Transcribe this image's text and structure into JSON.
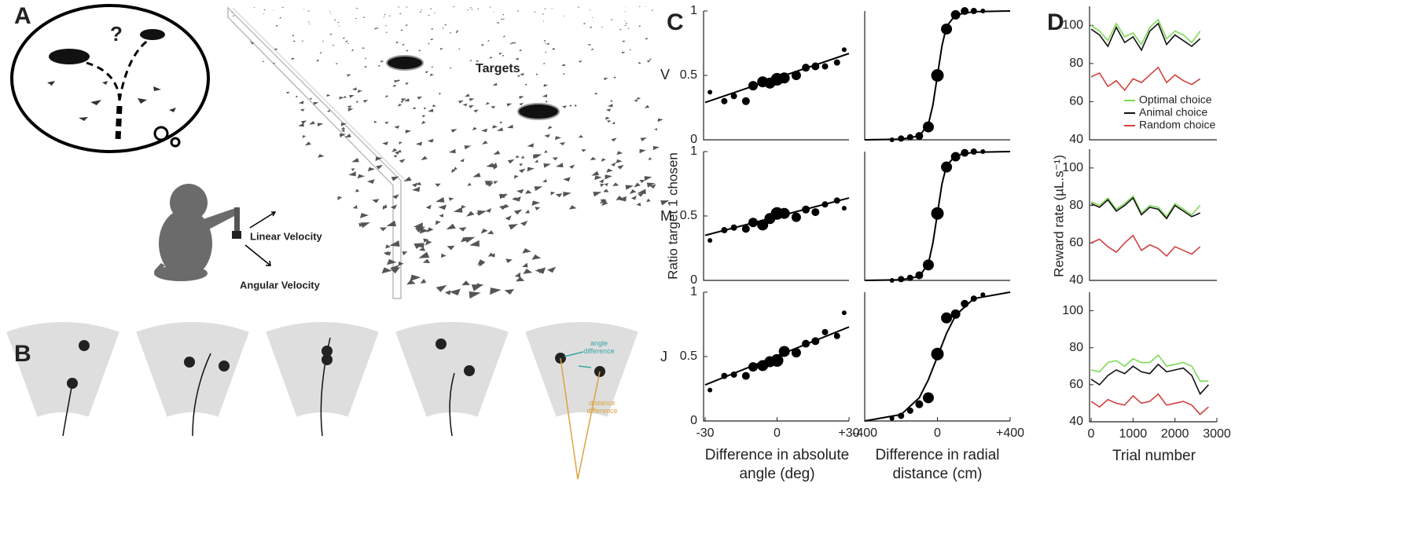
{
  "figure": {
    "panels": [
      "A",
      "B",
      "C",
      "D"
    ],
    "rows": [
      "V",
      "M",
      "J"
    ],
    "question": "?",
    "targets": "Targets",
    "linear_velocity": "Linear Velocity",
    "angular_velocity": "Angular Velocity",
    "angle_difference": "angle difference",
    "distance_difference": "distance difference"
  },
  "chart_data": [
    {
      "type": "scatter",
      "color": "#000",
      "xlim": [
        -30,
        30
      ],
      "ylim": [
        0,
        1
      ],
      "yticks": [
        0,
        0.5,
        1
      ],
      "x": [
        -28,
        -22,
        -18,
        -13,
        -10,
        -6,
        -3,
        0,
        3,
        8,
        12,
        16,
        20,
        25,
        28
      ],
      "values": [
        0.37,
        0.3,
        0.34,
        0.3,
        0.42,
        0.45,
        0.44,
        0.47,
        0.48,
        0.5,
        0.56,
        0.57,
        0.57,
        0.6,
        0.7
      ],
      "sizes": [
        3,
        4,
        4,
        5,
        6,
        7,
        7,
        8,
        7,
        6,
        5,
        5,
        4,
        4,
        3
      ],
      "fit": {
        "x": [
          -30,
          30
        ],
        "values": [
          0.29,
          0.67
        ]
      }
    },
    {
      "type": "scatter",
      "color": "#000",
      "xlim": [
        -400,
        400
      ],
      "ylim": [
        0,
        1
      ],
      "x": [
        -250,
        -200,
        -150,
        -100,
        -50,
        0,
        50,
        100,
        150,
        200,
        250
      ],
      "values": [
        0,
        0.01,
        0.02,
        0.03,
        0.1,
        0.5,
        0.86,
        0.97,
        1,
        1,
        1
      ],
      "sizes": [
        3,
        4,
        4,
        5,
        7,
        8,
        7,
        6,
        5,
        4,
        3
      ],
      "fit": {
        "x": [
          -400,
          -200,
          -100,
          -50,
          -25,
          0,
          25,
          50,
          100,
          200,
          400
        ],
        "values": [
          0,
          0.005,
          0.03,
          0.12,
          0.27,
          0.5,
          0.73,
          0.88,
          0.97,
          0.995,
          1
        ]
      }
    },
    {
      "type": "scatter",
      "color": "#000",
      "xlim": [
        -30,
        30
      ],
      "ylim": [
        0,
        1
      ],
      "yticks": [
        0,
        0.5,
        1
      ],
      "ylabel": "Ratio target 1 chosen",
      "x": [
        -28,
        -22,
        -18,
        -13,
        -10,
        -6,
        -3,
        0,
        3,
        8,
        12,
        16,
        20,
        25,
        28
      ],
      "values": [
        0.31,
        0.39,
        0.41,
        0.4,
        0.45,
        0.43,
        0.48,
        0.52,
        0.52,
        0.49,
        0.55,
        0.53,
        0.59,
        0.62,
        0.56
      ],
      "sizes": [
        3,
        4,
        4,
        5,
        6,
        7,
        7,
        8,
        7,
        6,
        5,
        5,
        4,
        4,
        3
      ],
      "fit": {
        "x": [
          -30,
          30
        ],
        "values": [
          0.35,
          0.64
        ]
      }
    },
    {
      "type": "scatter",
      "color": "#000",
      "xlim": [
        -400,
        400
      ],
      "ylim": [
        0,
        1
      ],
      "x": [
        -250,
        -200,
        -150,
        -100,
        -50,
        0,
        50,
        100,
        150,
        200,
        250
      ],
      "values": [
        0,
        0.01,
        0.02,
        0.04,
        0.12,
        0.52,
        0.88,
        0.96,
        0.99,
        1,
        1
      ],
      "sizes": [
        3,
        4,
        4,
        5,
        7,
        8,
        7,
        6,
        5,
        4,
        3
      ],
      "fit": {
        "x": [
          -400,
          -200,
          -100,
          -50,
          -25,
          0,
          25,
          50,
          100,
          200,
          400
        ],
        "values": [
          0,
          0.005,
          0.03,
          0.13,
          0.29,
          0.52,
          0.75,
          0.89,
          0.97,
          0.995,
          1
        ]
      }
    },
    {
      "type": "scatter",
      "color": "#000",
      "xlim": [
        -30,
        30
      ],
      "ylim": [
        0,
        1
      ],
      "yticks": [
        0,
        0.5,
        1
      ],
      "xticks": [
        -30,
        0,
        {
          "value": 30,
          "label": "+30"
        }
      ],
      "xlabel": "Difference in absolute angle (deg)",
      "x": [
        -28,
        -22,
        -18,
        -13,
        -10,
        -6,
        -3,
        0,
        3,
        8,
        12,
        16,
        20,
        25,
        28
      ],
      "values": [
        0.24,
        0.35,
        0.36,
        0.35,
        0.42,
        0.43,
        0.46,
        0.47,
        0.54,
        0.53,
        0.6,
        0.62,
        0.69,
        0.66,
        0.84
      ],
      "sizes": [
        3,
        4,
        4,
        5,
        6,
        7,
        7,
        8,
        7,
        6,
        5,
        5,
        4,
        4,
        3
      ],
      "fit": {
        "x": [
          -30,
          30
        ],
        "values": [
          0.28,
          0.73
        ]
      }
    },
    {
      "type": "scatter",
      "color": "#000",
      "xlim": [
        -400,
        400
      ],
      "ylim": [
        0,
        1
      ],
      "xticks": [
        -400,
        0,
        {
          "value": 400,
          "label": "+400"
        }
      ],
      "xlabel": "Difference in radial distance (cm)",
      "x": [
        -250,
        -200,
        -150,
        -100,
        -50,
        0,
        50,
        100,
        150,
        200,
        250
      ],
      "values": [
        0.02,
        0.04,
        0.08,
        0.13,
        0.18,
        0.52,
        0.8,
        0.83,
        0.91,
        0.95,
        0.98
      ],
      "sizes": [
        3,
        4,
        4,
        5,
        7,
        8,
        7,
        6,
        5,
        4,
        3
      ],
      "fit": {
        "x": [
          -400,
          -200,
          -100,
          -50,
          -25,
          0,
          25,
          50,
          100,
          200,
          400
        ],
        "values": [
          0,
          0.05,
          0.18,
          0.32,
          0.41,
          0.5,
          0.59,
          0.68,
          0.82,
          0.95,
          1
        ]
      }
    },
    {
      "type": "line",
      "xlim": [
        0,
        3000
      ],
      "ylim": [
        40,
        110
      ],
      "yticks": [
        40,
        60,
        80,
        100
      ],
      "legend": "right",
      "x": [
        0,
        200,
        400,
        600,
        800,
        1000,
        1200,
        1400,
        1600,
        1800,
        2000,
        2200,
        2400,
        2600
      ],
      "series": [
        {
          "name": "Optimal choice",
          "color": "#7ed957",
          "values": [
            100,
            97,
            92,
            101,
            94,
            96,
            90,
            99,
            103,
            93,
            97,
            95,
            91,
            97
          ]
        },
        {
          "name": "Animal choice",
          "color": "#111111",
          "values": [
            98,
            95,
            89,
            99,
            91,
            94,
            87,
            97,
            101,
            90,
            95,
            92,
            89,
            93
          ]
        },
        {
          "name": "Random choice",
          "color": "#d0423f",
          "values": [
            73,
            75,
            68,
            71,
            66,
            72,
            70,
            74,
            78,
            70,
            74,
            71,
            69,
            72
          ]
        }
      ]
    },
    {
      "type": "line",
      "xlim": [
        0,
        3000
      ],
      "ylim": [
        40,
        110
      ],
      "yticks": [
        40,
        60,
        80,
        100
      ],
      "ylabel": "Reward rate (µL.s⁻¹)",
      "x": [
        0,
        200,
        400,
        600,
        800,
        1000,
        1200,
        1400,
        1600,
        1800,
        2000,
        2200,
        2400,
        2600
      ],
      "series": [
        {
          "color": "#7ed957",
          "values": [
            82,
            80,
            84,
            78,
            81,
            85,
            76,
            80,
            79,
            74,
            81,
            78,
            75,
            80
          ]
        },
        {
          "color": "#111111",
          "values": [
            81,
            79,
            83,
            77,
            80,
            84,
            75,
            79,
            78,
            73,
            80,
            77,
            74,
            76
          ]
        },
        {
          "color": "#d0423f",
          "values": [
            60,
            62,
            58,
            55,
            60,
            64,
            56,
            59,
            57,
            53,
            58,
            56,
            54,
            58
          ]
        }
      ]
    },
    {
      "type": "line",
      "xlim": [
        0,
        3000
      ],
      "ylim": [
        40,
        110
      ],
      "yticks": [
        40,
        60,
        80,
        100
      ],
      "xticks": [
        0,
        1000,
        2000,
        3000
      ],
      "xlabel": "Trial number",
      "x": [
        0,
        200,
        400,
        600,
        800,
        1000,
        1200,
        1400,
        1600,
        1800,
        2000,
        2200,
        2400,
        2600,
        2800
      ],
      "series": [
        {
          "color": "#7ed957",
          "values": [
            68,
            67,
            72,
            73,
            70,
            74,
            72,
            72,
            76,
            70,
            71,
            72,
            70,
            62,
            62
          ]
        },
        {
          "color": "#111111",
          "values": [
            63,
            60,
            65,
            68,
            66,
            70,
            67,
            66,
            71,
            67,
            68,
            69,
            65,
            55,
            60
          ]
        },
        {
          "color": "#d0423f",
          "values": [
            51,
            48,
            52,
            50,
            49,
            54,
            50,
            51,
            55,
            49,
            50,
            51,
            49,
            44,
            48
          ]
        }
      ]
    }
  ]
}
